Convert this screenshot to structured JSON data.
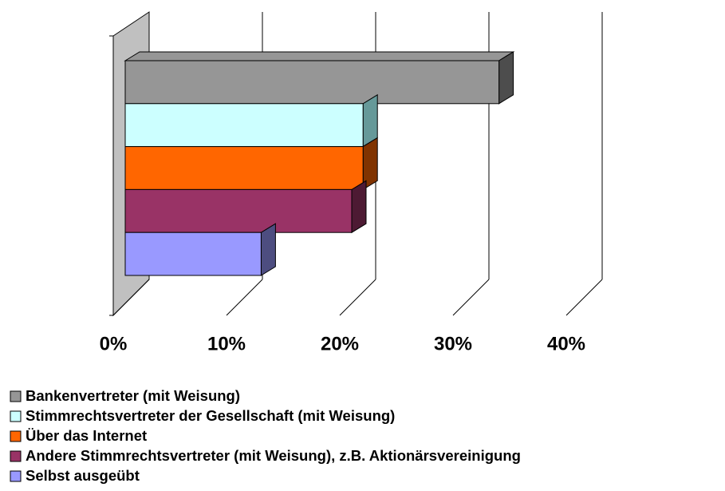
{
  "chart_data": {
    "type": "bar3d-horizontal",
    "categories": [
      "Bankenvertreter (mit Weisung)",
      "Stimmrechtsvertreter der Gesellschaft (mit Weisung)",
      "Über das Internet",
      "Andere Stimmrechtsvertreter (mit Weisung), z.B. Aktionärsvereinigung",
      "Selbst ausgeübt"
    ],
    "values": [
      33,
      21,
      21,
      20,
      12
    ],
    "colors": [
      "#969696",
      "#ccffff",
      "#ff6600",
      "#993366",
      "#9999ff"
    ],
    "side_colors": [
      "#4d4d4d",
      "#669999",
      "#803300",
      "#4d1a33",
      "#4d4d80"
    ],
    "xlim": [
      0,
      40
    ],
    "xticks": [
      {
        "value": 0,
        "label": "0%"
      },
      {
        "value": 10,
        "label": "10%"
      },
      {
        "value": 20,
        "label": "20%"
      },
      {
        "value": 30,
        "label": "30%"
      },
      {
        "value": 40,
        "label": "40%"
      }
    ],
    "grid": true
  }
}
